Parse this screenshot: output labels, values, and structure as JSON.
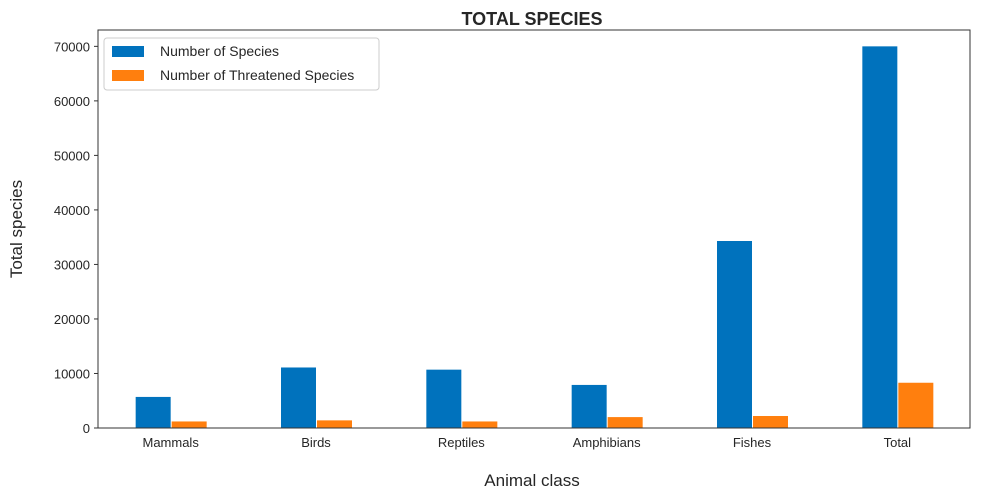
{
  "chart_data": {
    "type": "bar",
    "title": "TOTAL SPECIES",
    "xlabel": "Animal class",
    "ylabel": "Total species",
    "categories": [
      "Mammals",
      "Birds",
      "Reptiles",
      "Amphibians",
      "Fishes",
      "Total"
    ],
    "series": [
      {
        "name": "Number of Species",
        "color": "#0072bd",
        "values": [
          5700,
          11100,
          10700,
          7900,
          34300,
          70000
        ]
      },
      {
        "name": "Number of Threatened Species",
        "color": "#ff7f0e",
        "values": [
          1200,
          1400,
          1200,
          2000,
          2200,
          8300
        ]
      }
    ],
    "ylim": [
      0,
      73000
    ],
    "yticks": [
      0,
      10000,
      20000,
      30000,
      40000,
      50000,
      60000,
      70000
    ],
    "grid": false,
    "legend": "top-left"
  }
}
